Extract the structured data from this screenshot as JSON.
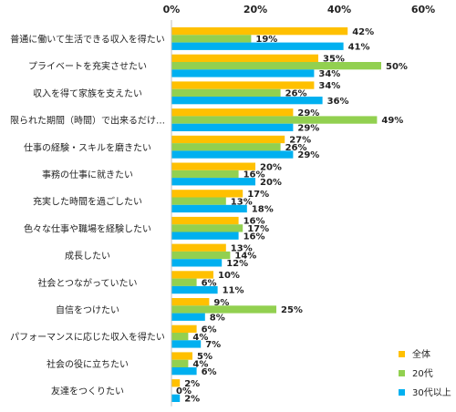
{
  "chart_data": {
    "type": "bar",
    "orientation": "horizontal",
    "categories": [
      "普通に働いて生活できる収入を得たい",
      "プライベートを充実させたい",
      "収入を得て家族を支えたい",
      "限られた期間（時間）で出来るだけ…",
      "仕事の経験・スキルを磨きたい",
      "事務の仕事に就きたい",
      "充実した時間を過ごしたい",
      "色々な仕事や職場を経験したい",
      "成長したい",
      "社会とつながっていたい",
      "自信をつけたい",
      "パフォーマンスに応じた収入を得たい",
      "社会の役に立ちたい",
      "友達をつくりたい"
    ],
    "series": [
      {
        "name": "全体",
        "values": [
          42,
          35,
          34,
          29,
          27,
          20,
          17,
          16,
          13,
          10,
          9,
          6,
          5,
          2
        ]
      },
      {
        "name": "20代",
        "values": [
          19,
          50,
          26,
          49,
          26,
          16,
          13,
          17,
          14,
          6,
          25,
          4,
          4,
          0
        ]
      },
      {
        "name": "30代以上",
        "values": [
          41,
          34,
          36,
          29,
          29,
          20,
          18,
          16,
          12,
          11,
          8,
          7,
          6,
          2
        ]
      }
    ],
    "value_suffix": "%",
    "xlim": [
      0,
      60
    ],
    "xticks": [
      "0%",
      "20%",
      "40%",
      "60%"
    ],
    "xtick_values": [
      0,
      20,
      40,
      60
    ],
    "grid": false,
    "legend_position": "bottom-right",
    "colors": [
      "#FFC000",
      "#92D050",
      "#00B0F0"
    ]
  }
}
